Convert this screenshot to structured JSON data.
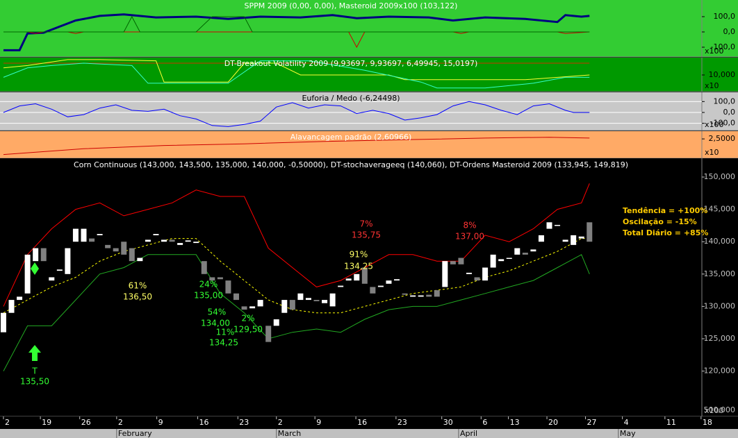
{
  "chart_data": [
    {
      "type": "line",
      "title": "SPPM 2009 (0,00, 0,00), Masteroid 2009x100 (103,122)",
      "background": "#33cc33",
      "title_color": "#ffffff",
      "tick_color": "#000000",
      "xlim": [
        -0.43,
        87
      ],
      "ylim": [
        -163.6,
        209.1
      ],
      "yticks": [
        {
          "value": 100,
          "label": "100,0"
        },
        {
          "value": 0,
          "label": "0,0"
        },
        {
          "value": -100,
          "label": "-100,0"
        }
      ],
      "scale_label": "x100",
      "grid": false,
      "series": [
        {
          "color": "#000080",
          "thick": true,
          "x": [
            0,
            2,
            3,
            5,
            9,
            12,
            15,
            19,
            24,
            28,
            32,
            37,
            41,
            44,
            48,
            53,
            56,
            60,
            65,
            69,
            70,
            72,
            73
          ],
          "values": [
            -120,
            -120,
            -10,
            -5,
            75,
            105,
            115,
            95,
            100,
            85,
            100,
            95,
            110,
            90,
            100,
            95,
            75,
            95,
            85,
            65,
            110,
            100,
            105
          ]
        },
        {
          "color": "#cc0000",
          "thick": false,
          "x": [
            0,
            3,
            4,
            5,
            8,
            9,
            10,
            43,
            44,
            45,
            56,
            57,
            58,
            69,
            70,
            73
          ],
          "values": [
            0,
            0,
            -10,
            0,
            0,
            -10,
            0,
            0,
            -100,
            0,
            0,
            -10,
            0,
            0,
            -10,
            0
          ]
        },
        {
          "color": "#006600",
          "thick": false,
          "x": [
            0,
            15,
            16,
            17,
            24,
            26,
            30,
            31,
            73
          ],
          "values": [
            0,
            0,
            100,
            0,
            0,
            100,
            100,
            0,
            0
          ]
        }
      ]
    },
    {
      "type": "line",
      "title": "DT-Breakout Volatility 2009 (9,93697, 9,93697, 6,49945, 15,0197)",
      "background": "#009900",
      "title_color": "#ffffff",
      "tick_color": "#000000",
      "xlim": [
        -0.43,
        87
      ],
      "ylim": [
        2.94,
        17.35
      ],
      "yticks": [
        {
          "value": 10,
          "label": "10,000"
        }
      ],
      "scale_label": "x10",
      "grid": false,
      "series": [
        {
          "color": "#cc3300",
          "thick": false,
          "x": [
            0,
            73
          ],
          "values": [
            15,
            15
          ]
        },
        {
          "color": "#ffff33",
          "thick": false,
          "x": [
            0,
            3,
            8,
            12,
            19,
            20,
            28,
            30,
            34,
            37,
            48,
            50,
            60,
            65,
            73
          ],
          "values": [
            13,
            14,
            16.5,
            16.5,
            16,
            7,
            7,
            15,
            15,
            10,
            10,
            8,
            8,
            8,
            10
          ]
        },
        {
          "color": "#33ffcc",
          "thick": false,
          "x": [
            0,
            3,
            6,
            10,
            16,
            18,
            28,
            32,
            38,
            45,
            52,
            54,
            60,
            66,
            70,
            73
          ],
          "values": [
            9,
            13,
            14,
            15,
            14,
            6.5,
            6.5,
            16,
            16,
            12,
            7,
            4.5,
            4.5,
            6.5,
            9,
            9
          ]
        }
      ]
    },
    {
      "type": "line",
      "title": "Euforia / Medo (-6,24498)",
      "background": "#c8c8c8",
      "title_color": "#000000",
      "tick_color": "#000000",
      "xlim": [
        -0.43,
        87
      ],
      "ylim": [
        -166,
        185
      ],
      "yticks": [
        {
          "value": 100,
          "label": "100,0"
        },
        {
          "value": 0,
          "label": "0,0"
        },
        {
          "value": -100,
          "label": "-100,0"
        }
      ],
      "scale_label": "x100",
      "grid": true,
      "series": [
        {
          "color": "#0000ff",
          "thick": false,
          "x": [
            0,
            2,
            4,
            6,
            8,
            10,
            12,
            14,
            16,
            18,
            20,
            22,
            24,
            26,
            28,
            30,
            32,
            34,
            36,
            38,
            40,
            42,
            44,
            46,
            48,
            50,
            52,
            54,
            56,
            58,
            60,
            62,
            64,
            66,
            68,
            70,
            71,
            73
          ],
          "values": [
            0,
            60,
            80,
            30,
            -40,
            -20,
            40,
            70,
            20,
            10,
            30,
            -30,
            -60,
            -120,
            -130,
            -110,
            -80,
            50,
            90,
            40,
            70,
            60,
            -10,
            20,
            -10,
            -70,
            -50,
            -20,
            60,
            100,
            70,
            20,
            -20,
            60,
            80,
            20,
            0,
            0
          ]
        }
      ]
    },
    {
      "type": "line",
      "title": "Alavancagem padrão (2,60966)",
      "background": "#ffaa66",
      "title_color": "#ffffff",
      "tick_color": "#000000",
      "xlim": [
        -0.43,
        87
      ],
      "ylim": [
        1.32,
        2.97
      ],
      "yticks": [
        {
          "value": 2.5,
          "label": "2,5000"
        }
      ],
      "scale_label": "x10",
      "grid": false,
      "series": [
        {
          "color": "#cc0000",
          "thick": false,
          "x": [
            0,
            10,
            20,
            30,
            40,
            50,
            60,
            68,
            73
          ],
          "values": [
            1.55,
            1.9,
            2.1,
            2.2,
            2.35,
            2.45,
            2.55,
            2.6,
            2.55
          ]
        }
      ]
    },
    {
      "type": "candlestick",
      "title": "Corn Continuous (143,000, 143,500, 135,000, 140,000, -0,50000), DT-stochaverageeq (140,060), DT-Ordens Masteroid 2009 (133,945, 149,819)",
      "background": "#000000",
      "title_color": "#ffffff",
      "tick_color": "#c0c0c0",
      "xlim": [
        -0.43,
        87
      ],
      "ylim": [
        112.98,
        152.9
      ],
      "yticks": [
        {
          "value": 150,
          "label": "150,000"
        },
        {
          "value": 145,
          "label": "145,000"
        },
        {
          "value": 140,
          "label": "140,000"
        },
        {
          "value": 135,
          "label": "135,000"
        },
        {
          "value": 130,
          "label": "130,000"
        },
        {
          "value": 125,
          "label": "125,000"
        },
        {
          "value": 120,
          "label": "120,000"
        }
      ],
      "volume_tick_label": "500,000",
      "scale_label": "x100",
      "grid": false,
      "up_color": "#ffffff",
      "down_color": "#808080",
      "x": [
        0,
        1,
        2,
        3,
        4,
        5,
        6,
        7,
        8,
        9,
        10,
        11,
        12,
        13,
        14,
        15,
        16,
        17,
        18,
        19,
        20,
        21,
        22,
        23,
        24,
        25,
        26,
        27,
        28,
        29,
        30,
        31,
        32,
        33,
        34,
        35,
        36,
        37,
        38,
        39,
        40,
        41,
        42,
        43,
        44,
        45,
        46,
        47,
        48,
        49,
        50,
        51,
        52,
        53,
        54,
        55,
        56,
        57,
        58,
        59,
        60,
        61,
        62,
        63,
        64,
        65,
        66,
        67,
        68,
        69,
        70,
        71,
        72,
        73
      ],
      "open": [
        126,
        129,
        131,
        132,
        137,
        139,
        134,
        135.5,
        135,
        140,
        140,
        140.5,
        141,
        139.5,
        139,
        140,
        139,
        137,
        140,
        141,
        140,
        140.3,
        139.5,
        140,
        139.8,
        137,
        134.5,
        134.5,
        134,
        132,
        130,
        129.7,
        130,
        127,
        127,
        129,
        131,
        131,
        131,
        131,
        130.5,
        130,
        133,
        134,
        134,
        136,
        133,
        133,
        133.5,
        134,
        132,
        131.5,
        131.5,
        131.8,
        132.5,
        133,
        137,
        137.5,
        135,
        134.5,
        134,
        136,
        137,
        137.5,
        138,
        138.3,
        138.5,
        140,
        142,
        142.5,
        140,
        139.5,
        140.5,
        143
      ],
      "close": [
        129,
        131,
        131.5,
        138,
        139,
        137,
        134.5,
        135.7,
        139,
        142,
        142,
        140,
        141.2,
        139,
        138.5,
        138,
        137,
        137.5,
        140.3,
        141.2,
        140.3,
        140,
        139.8,
        140.2,
        140,
        135,
        134,
        134.2,
        132,
        131,
        129.5,
        130,
        131,
        124.5,
        128,
        131,
        129.5,
        132,
        131.3,
        130.8,
        131,
        132,
        133.2,
        134.3,
        135,
        133.5,
        132,
        133.2,
        134,
        134.2,
        131.8,
        131.7,
        131.7,
        131.5,
        131.5,
        137,
        136.5,
        136.5,
        135.2,
        134,
        136,
        138,
        137.3,
        137.5,
        139,
        138,
        138.8,
        141,
        143,
        142.6,
        140.3,
        141,
        140.8,
        140
      ],
      "series": [
        {
          "color": "#ff0000",
          "dash": false,
          "x": [
            0,
            3,
            6,
            9,
            12,
            15,
            18,
            21,
            24,
            27,
            30,
            33,
            36,
            39,
            42,
            45,
            48,
            51,
            54,
            57,
            60,
            63,
            66,
            69,
            72,
            73
          ],
          "values": [
            130,
            138,
            142,
            145,
            146,
            144,
            145,
            146,
            148,
            147,
            147,
            139,
            136,
            133,
            134,
            136,
            138,
            138,
            137,
            137,
            141,
            140,
            142,
            145,
            146,
            149
          ]
        },
        {
          "color": "#22aa22",
          "dash": false,
          "x": [
            0,
            3,
            6,
            9,
            12,
            15,
            18,
            21,
            24,
            27,
            30,
            33,
            36,
            39,
            42,
            45,
            48,
            51,
            54,
            57,
            60,
            63,
            66,
            69,
            72,
            73
          ],
          "values": [
            120,
            127,
            127,
            131,
            135,
            136,
            138,
            138,
            138,
            132,
            129,
            125,
            126,
            126.5,
            126,
            128,
            129.5,
            130,
            130,
            131,
            132,
            133,
            134,
            136,
            138,
            135
          ]
        },
        {
          "color": "#ffff00",
          "dash": true,
          "x": [
            0,
            3,
            6,
            9,
            12,
            15,
            18,
            21,
            24,
            27,
            30,
            33,
            36,
            39,
            42,
            45,
            48,
            51,
            54,
            57,
            60,
            63,
            66,
            69,
            72,
            73
          ],
          "values": [
            129,
            131,
            133,
            134.5,
            137,
            138.5,
            139.5,
            140.5,
            140.5,
            137,
            134,
            131,
            129.5,
            129,
            129,
            130,
            131,
            132,
            132.5,
            133,
            134.5,
            135.5,
            137,
            138.5,
            140.5,
            140.5
          ]
        }
      ],
      "annotations": [
        {
          "text": "61%",
          "color": "#ffff66"
        },
        {
          "text": "136,50",
          "color": "#ffff66"
        },
        {
          "text": "24%",
          "color": "#33ff33"
        },
        {
          "text": "135,00",
          "color": "#33ff33"
        },
        {
          "text": "54%",
          "color": "#33ff33"
        },
        {
          "text": "134,00",
          "color": "#33ff33"
        },
        {
          "text": "11%",
          "color": "#33ff33"
        },
        {
          "text": "134,25",
          "color": "#33ff33"
        },
        {
          "text": "2%",
          "color": "#33ff33"
        },
        {
          "text": "129,50",
          "color": "#33ff33"
        },
        {
          "text": "91%",
          "color": "#ffff66"
        },
        {
          "text": "134,25",
          "color": "#ffff66"
        },
        {
          "text": "7%",
          "color": "#ff3333"
        },
        {
          "text": "135,75",
          "color": "#ff3333"
        },
        {
          "text": "8%",
          "color": "#ff3333"
        },
        {
          "text": "137,00",
          "color": "#ff3333"
        },
        {
          "text": "T",
          "color": "#33ff33"
        },
        {
          "text": "135,50",
          "color": "#33ff33"
        }
      ],
      "summary": [
        "Tendência = +100%",
        "Oscilação = -15%",
        "Total Diário = +85%"
      ],
      "summary_color": "#ffcc00",
      "xticks": [
        {
          "value": 0,
          "label": "2"
        },
        {
          "value": 4.6,
          "label": "19"
        },
        {
          "value": 9.5,
          "label": "26"
        },
        {
          "value": 14.1,
          "label": "2"
        },
        {
          "value": 19.1,
          "label": "9"
        },
        {
          "value": 24.2,
          "label": "16"
        },
        {
          "value": 29.2,
          "label": "23"
        },
        {
          "value": 34,
          "label": "2"
        },
        {
          "value": 38.8,
          "label": "9"
        },
        {
          "value": 43.9,
          "label": "16"
        },
        {
          "value": 48.9,
          "label": "23"
        },
        {
          "value": 54.6,
          "label": "30"
        },
        {
          "value": 59.5,
          "label": "6"
        },
        {
          "value": 62.9,
          "label": "13"
        },
        {
          "value": 67.7,
          "label": "20"
        },
        {
          "value": 72.5,
          "label": "27"
        },
        {
          "value": 77.1,
          "label": "4"
        },
        {
          "value": 82.4,
          "label": "11"
        },
        {
          "value": 86.9,
          "label": "18"
        }
      ],
      "months": [
        {
          "value": 14.1,
          "label": "February"
        },
        {
          "value": 34,
          "label": "March"
        },
        {
          "value": 56.7,
          "label": "April"
        },
        {
          "value": 76.6,
          "label": "May"
        }
      ]
    }
  ]
}
